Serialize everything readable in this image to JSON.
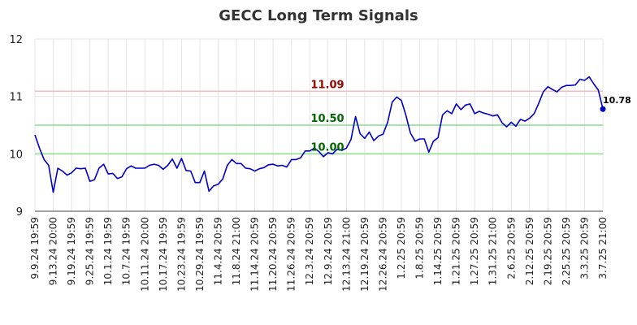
{
  "chart_data": {
    "type": "line",
    "title": "GECC Long Term Signals",
    "ylim": [
      9,
      12
    ],
    "yticks": [
      "9",
      "10",
      "11",
      "12"
    ],
    "grid": true,
    "x_tick_labels": [
      "9.9.24 19:59",
      "9.13.24 20:00",
      "9.19.24 19:59",
      "9.25.24 19:59",
      "10.1.24 19:59",
      "10.7.24 19:59",
      "10.11.24 20:00",
      "10.17.24 19:59",
      "10.23.24 19:59",
      "10.29.24 19:59",
      "11.4.24 20:59",
      "11.8.24 21:00",
      "11.14.24 20:59",
      "11.20.24 20:59",
      "11.26.24 20:59",
      "12.3.24 20:59",
      "12.9.24 20:59",
      "12.13.24 21:00",
      "12.19.24 20:59",
      "12.26.24 20:59",
      "1.2.25 20:59",
      "1.8.25 20:59",
      "1.14.25 20:59",
      "1.21.25 20:59",
      "1.27.25 20:59",
      "1.31.25 21:00",
      "2.6.25 20:59",
      "2.12.25 20:59",
      "2.19.25 20:59",
      "2.25.25 20:59",
      "3.3.25 20:59",
      "3.7.25 21:00"
    ],
    "series": [
      {
        "color": "#0000cc",
        "values": [
          10.33,
          10.1,
          9.9,
          9.8,
          9.33,
          9.75,
          9.7,
          9.63,
          9.67,
          9.75,
          9.74,
          9.75,
          9.52,
          9.55,
          9.75,
          9.82,
          9.65,
          9.66,
          9.57,
          9.6,
          9.74,
          9.79,
          9.75,
          9.75,
          9.75,
          9.8,
          9.82,
          9.8,
          9.73,
          9.8,
          9.91,
          9.75,
          9.92,
          9.71,
          9.7,
          9.5,
          9.5,
          9.7,
          9.35,
          9.44,
          9.47,
          9.56,
          9.8,
          9.9,
          9.83,
          9.83,
          9.75,
          9.74,
          9.7,
          9.74,
          9.76,
          9.81,
          9.82,
          9.79,
          9.8,
          9.77,
          9.9,
          9.9,
          9.93,
          10.05,
          10.05,
          10.1,
          10.04,
          9.95,
          10.02,
          10.0,
          10.08,
          10.06,
          10.1,
          10.25,
          10.65,
          10.35,
          10.27,
          10.38,
          10.23,
          10.31,
          10.34,
          10.55,
          10.9,
          10.99,
          10.93,
          10.67,
          10.36,
          10.22,
          10.26,
          10.26,
          10.03,
          10.22,
          10.28,
          10.68,
          10.75,
          10.7,
          10.87,
          10.77,
          10.85,
          10.87,
          10.7,
          10.74,
          10.71,
          10.69,
          10.66,
          10.68,
          10.54,
          10.47,
          10.55,
          10.48,
          10.6,
          10.57,
          10.62,
          10.7,
          10.88,
          11.08,
          11.17,
          11.12,
          11.08,
          11.16,
          11.19,
          11.19,
          11.2,
          11.3,
          11.28,
          11.34,
          11.22,
          11.11,
          10.78
        ]
      }
    ],
    "hlines": [
      {
        "value": 11.09,
        "label": "11.09",
        "color": "#ffbbbb",
        "label_color": "#990000"
      },
      {
        "value": 10.5,
        "label": "10.50",
        "color": "#88dd88",
        "label_color": "#006600"
      },
      {
        "value": 10.0,
        "label": "10.00",
        "color": "#88dd88",
        "label_color": "#006600"
      }
    ],
    "last_value_label": "10.78"
  }
}
